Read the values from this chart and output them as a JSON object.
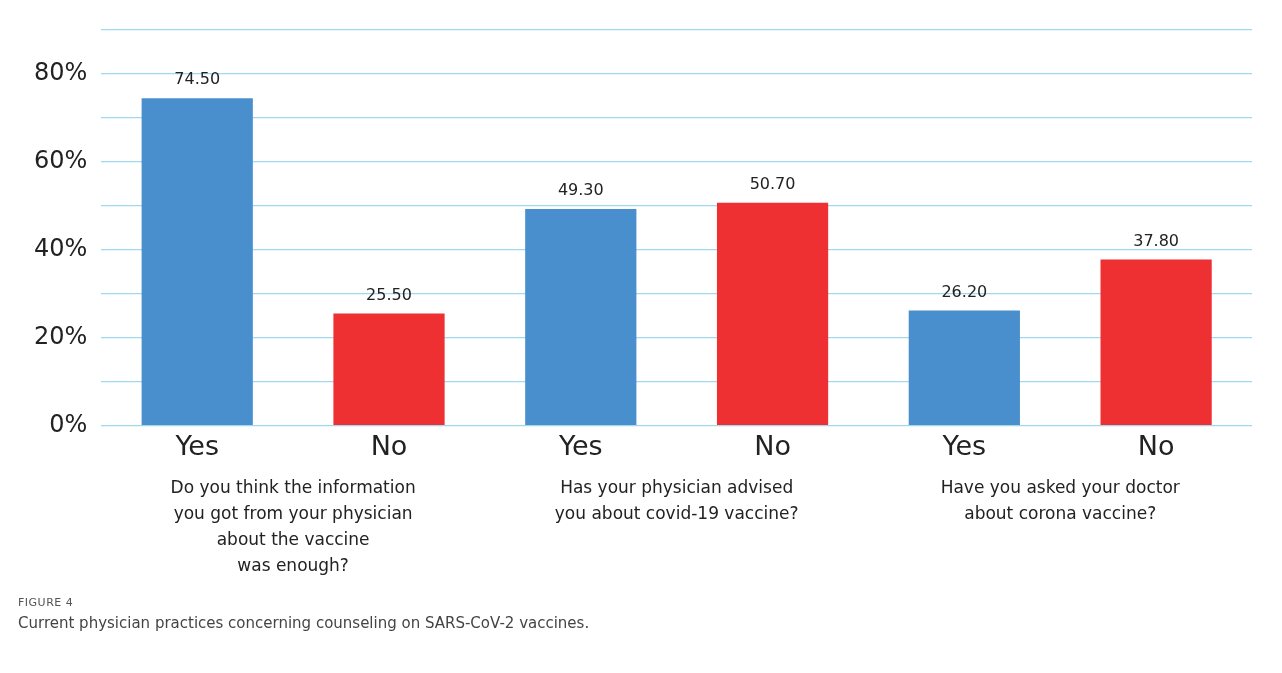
{
  "chart_data": {
    "type": "bar",
    "title": "FIGURE 4",
    "subtitle": "Current physician practices concerning counseling on SARS-CoV-2 vaccines.",
    "categories": [
      "Yes",
      "No",
      "Yes",
      "No",
      "Yes",
      "No"
    ],
    "values": [
      74.5,
      25.5,
      49.3,
      50.7,
      26.2,
      37.8
    ],
    "value_labels": [
      "74.50",
      "25.50",
      "49.30",
      "50.70",
      "26.20",
      "37.80"
    ],
    "colors": [
      "#4a8fcd",
      "#ee3033",
      "#4a8fcd",
      "#ee3033",
      "#4a8fcd",
      "#ee3033"
    ],
    "annotations": [
      "Do you think the information\nyou got from your physician\nabout the vaccine\nwas enough?",
      "Has your physician advised\nyou about covid-19 vaccine?",
      "Have you asked your doctor\nabout corona vaccine?"
    ],
    "ylim": [
      0,
      90
    ],
    "yticks": [
      {
        "value": 0,
        "label": "0%"
      },
      {
        "value": 10,
        "label": null
      },
      {
        "value": 20,
        "label": "20%"
      },
      {
        "value": 30,
        "label": null
      },
      {
        "value": 40,
        "label": "40%"
      },
      {
        "value": 50,
        "label": null
      },
      {
        "value": 60,
        "label": "60%"
      },
      {
        "value": 70,
        "label": null
      },
      {
        "value": 80,
        "label": "80%"
      },
      {
        "value": 90,
        "label": null
      }
    ],
    "grid": "y",
    "legend": false
  }
}
